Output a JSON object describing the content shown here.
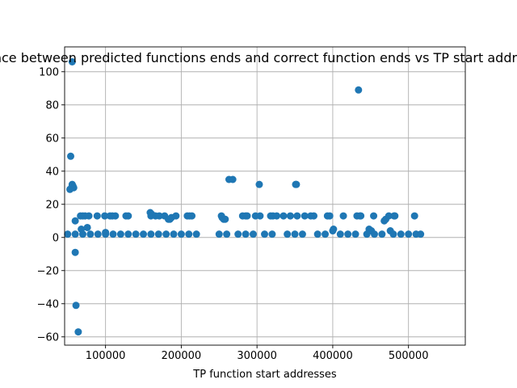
{
  "chart_data": {
    "type": "scatter",
    "title": "Difference between predicted functions ends and correct function ends vs TP start addres for libc",
    "xlabel": "TP function start addresses",
    "ylabel": "",
    "xlim": [
      46000,
      575000
    ],
    "ylim": [
      -65,
      115
    ],
    "grid": true,
    "xticks": [
      100000,
      200000,
      300000,
      400000,
      500000
    ],
    "yticks": [
      -60,
      -40,
      -20,
      0,
      20,
      40,
      60,
      80,
      100
    ],
    "point_color": "#1f77b4",
    "series": [
      {
        "x": [
          56000,
          54000,
          55000,
          56000,
          57000,
          53000,
          58000,
          60000,
          60000,
          61000,
          64000,
          67000,
          68000,
          70000,
          73000,
          76000,
          78000,
          89000,
          99000,
          100000,
          106000,
          109000,
          113000,
          127000,
          130000,
          159000,
          160000,
          161000,
          166000,
          171000,
          178000,
          183000,
          185000,
          187000,
          193000,
          208000,
          211000,
          214000,
          253000,
          254000,
          256000,
          258000,
          263000,
          268000,
          281000,
          285000,
          287000,
          298000,
          303000,
          304000,
          318000,
          321000,
          326000,
          335000,
          344000,
          351000,
          352000,
          353000,
          363000,
          371000,
          375000,
          393000,
          396000,
          400000,
          401000,
          414000,
          432000,
          434000,
          436000,
          437000,
          448000,
          451000,
          454000,
          468000,
          470000,
          474000,
          476000,
          481000,
          482000,
          508000,
          50000,
          60000,
          70000,
          80000,
          90000,
          100000,
          110000,
          120000,
          130000,
          140000,
          150000,
          160000,
          170000,
          180000,
          190000,
          200000,
          210000,
          220000,
          250000,
          260000,
          275000,
          285000,
          295000,
          310000,
          320000,
          340000,
          350000,
          360000,
          380000,
          390000,
          410000,
          420000,
          430000,
          445000,
          455000,
          465000,
          480000,
          490000,
          500000,
          510000,
          516000
        ],
        "y": [
          106,
          49,
          30,
          32,
          31,
          29,
          30,
          10,
          -9,
          -41,
          -57,
          13,
          5,
          13,
          13,
          6,
          13,
          13,
          13,
          3,
          13,
          13,
          13,
          13,
          13,
          15,
          13,
          14,
          13,
          13,
          13,
          11,
          11,
          12,
          13,
          13,
          13,
          13,
          13,
          12,
          11,
          11,
          35,
          35,
          13,
          13,
          13,
          13,
          32,
          13,
          13,
          13,
          13,
          13,
          13,
          32,
          32,
          13,
          13,
          13,
          13,
          13,
          13,
          4,
          5,
          13,
          13,
          89,
          13,
          13,
          5,
          4,
          13,
          10,
          11,
          13,
          4,
          13,
          13,
          13,
          2,
          2,
          2,
          2,
          2,
          2,
          2,
          2,
          2,
          2,
          2,
          2,
          2,
          2,
          2,
          2,
          2,
          2,
          2,
          2,
          2,
          2,
          2,
          2,
          2,
          2,
          2,
          2,
          2,
          2,
          2,
          2,
          2,
          2,
          2,
          2,
          2,
          2,
          2,
          2,
          2
        ]
      }
    ]
  }
}
